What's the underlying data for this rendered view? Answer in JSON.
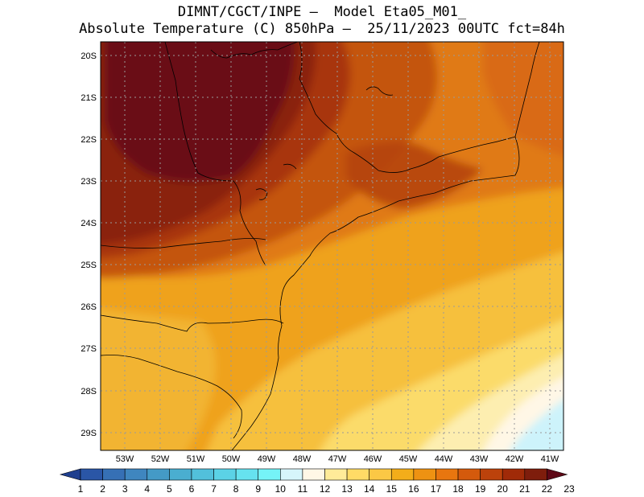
{
  "title_line1": "DIMNT/CGCT/INPE –  Model Eta05_M01_",
  "title_line2": "Absolute Temperature (C) 850hPa –  25/11/2023 00UTC fct=84h",
  "lat_ticks": [
    "20S",
    "21S",
    "22S",
    "23S",
    "24S",
    "25S",
    "26S",
    "27S",
    "28S",
    "29S"
  ],
  "lon_ticks": [
    "53W",
    "52W",
    "51W",
    "50W",
    "49W",
    "48W",
    "47W",
    "46W",
    "45W",
    "44W",
    "43W",
    "42W",
    "41W"
  ],
  "colorbar": {
    "labels": [
      "1",
      "2",
      "3",
      "4",
      "5",
      "6",
      "7",
      "8",
      "9",
      "10",
      "11",
      "12",
      "13",
      "14",
      "15",
      "16",
      "17",
      "18",
      "19",
      "20",
      "21",
      "22",
      "23"
    ],
    "colors": [
      "#1f3f8f",
      "#2a56a6",
      "#3670b5",
      "#3f86bf",
      "#449ac6",
      "#4aaed0",
      "#52c0db",
      "#5bd2e6",
      "#66e2ef",
      "#75f3f7",
      "#d6f5fb",
      "#fff7e6",
      "#ffeb99",
      "#ffdb66",
      "#fbc845",
      "#f3ad1a",
      "#ee9212",
      "#e8760f",
      "#d45a0c",
      "#bc420b",
      "#a02a08",
      "#7e1d0c",
      "#5e0816"
    ]
  },
  "legend_regions": {
    "deep": "#6b0f17",
    "dark": "#8a2410",
    "red_orange": "#a8350e",
    "orange_dark": "#c4550f",
    "orange": "#e07a13",
    "orange_light": "#efa21e",
    "yellow_orange": "#f6c03c",
    "yellow": "#fbdb6a",
    "pale_yellow": "#fdeeb0",
    "cream": "#fff7e6",
    "light_cyan": "#cdf3fb"
  }
}
